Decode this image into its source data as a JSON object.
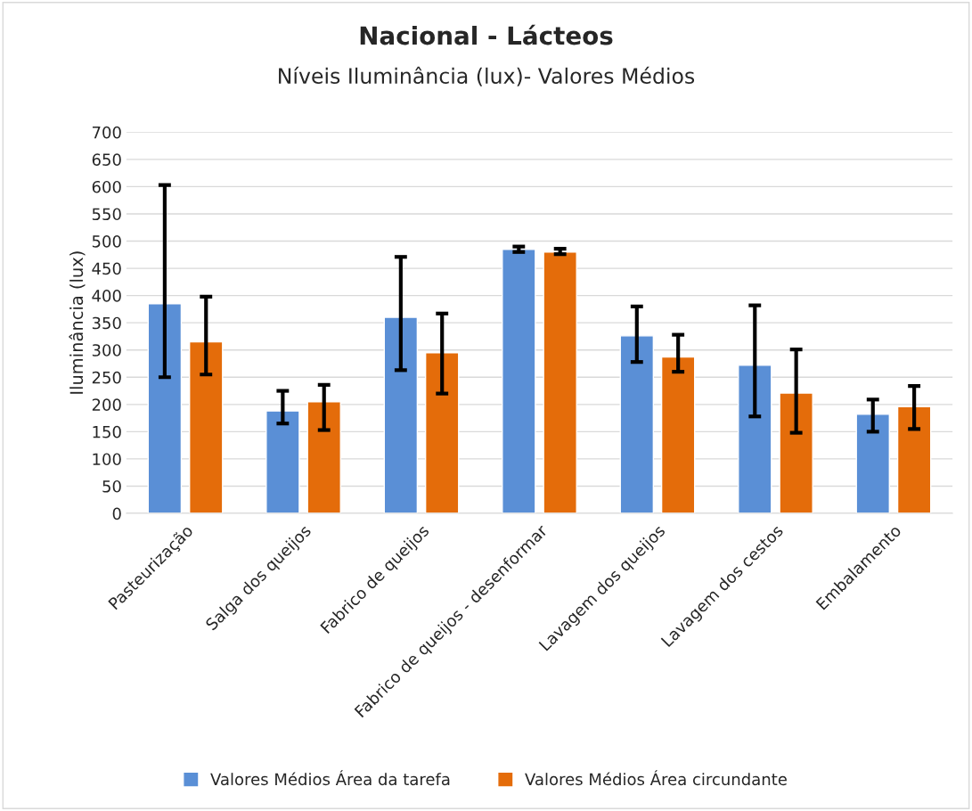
{
  "chart_data": {
    "type": "bar",
    "title": "Nacional - Lácteos",
    "subtitle": "Níveis Iluminância (lux)- Valores Médios",
    "ylabel": "Iluminância (lux)",
    "categories": [
      "Pasteurização",
      "Salga dos queijos",
      "Fabrico de queijos",
      "Fabrico de queijos - desenformar",
      "Lavagem dos queijos",
      "Lavagem dos cestos",
      "Embalamento"
    ],
    "series": [
      {
        "name": "Valores Médios Área da tarefa",
        "color": "#5a8fd6",
        "values": [
          385,
          188,
          360,
          485,
          326,
          272,
          182
        ],
        "errors": [
          [
            250,
            603
          ],
          [
            165,
            225
          ],
          [
            263,
            471
          ],
          [
            480,
            490
          ],
          [
            278,
            380
          ],
          [
            178,
            382
          ],
          [
            150,
            209
          ]
        ]
      },
      {
        "name": "Valores Médios Área circundante",
        "color": "#e46c0a",
        "values": [
          315,
          205,
          295,
          480,
          287,
          221,
          196
        ],
        "errors": [
          [
            255,
            398
          ],
          [
            153,
            236
          ],
          [
            220,
            367
          ],
          [
            476,
            486
          ],
          [
            260,
            328
          ],
          [
            148,
            301
          ],
          [
            155,
            234
          ]
        ]
      }
    ],
    "ylim": [
      0,
      700
    ],
    "yticks": [
      0,
      50,
      100,
      150,
      200,
      250,
      300,
      350,
      400,
      450,
      500,
      550,
      600,
      650,
      700
    ],
    "grid": "y",
    "legend": "bottom"
  }
}
